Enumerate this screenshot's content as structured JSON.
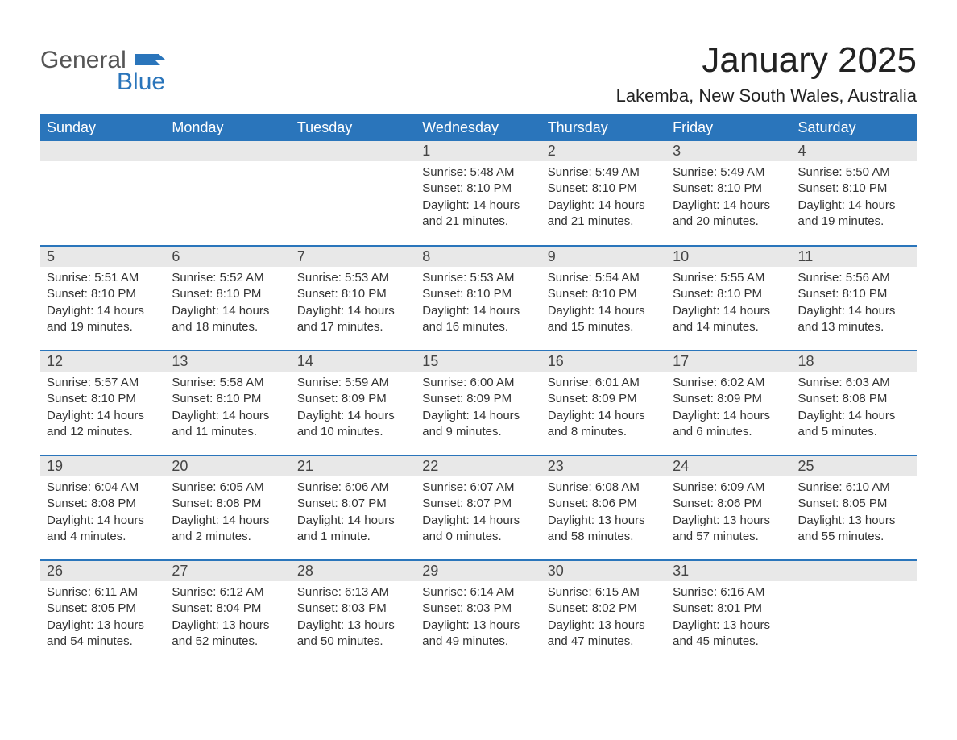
{
  "logo": {
    "word1": "General",
    "word2": "Blue",
    "brand_color": "#2a75bb"
  },
  "header": {
    "title": "January 2025",
    "location": "Lakemba, New South Wales, Australia"
  },
  "calendar": {
    "header_bg": "#2a75bb",
    "header_fg": "#ffffff",
    "daynum_bg": "#e8e8e8",
    "rule_color": "#2a75bb",
    "weekdays": [
      "Sunday",
      "Monday",
      "Tuesday",
      "Wednesday",
      "Thursday",
      "Friday",
      "Saturday"
    ],
    "weeks": [
      [
        null,
        null,
        null,
        {
          "n": "1",
          "sunrise": "Sunrise: 5:48 AM",
          "sunset": "Sunset: 8:10 PM",
          "daylight": "Daylight: 14 hours and 21 minutes."
        },
        {
          "n": "2",
          "sunrise": "Sunrise: 5:49 AM",
          "sunset": "Sunset: 8:10 PM",
          "daylight": "Daylight: 14 hours and 21 minutes."
        },
        {
          "n": "3",
          "sunrise": "Sunrise: 5:49 AM",
          "sunset": "Sunset: 8:10 PM",
          "daylight": "Daylight: 14 hours and 20 minutes."
        },
        {
          "n": "4",
          "sunrise": "Sunrise: 5:50 AM",
          "sunset": "Sunset: 8:10 PM",
          "daylight": "Daylight: 14 hours and 19 minutes."
        }
      ],
      [
        {
          "n": "5",
          "sunrise": "Sunrise: 5:51 AM",
          "sunset": "Sunset: 8:10 PM",
          "daylight": "Daylight: 14 hours and 19 minutes."
        },
        {
          "n": "6",
          "sunrise": "Sunrise: 5:52 AM",
          "sunset": "Sunset: 8:10 PM",
          "daylight": "Daylight: 14 hours and 18 minutes."
        },
        {
          "n": "7",
          "sunrise": "Sunrise: 5:53 AM",
          "sunset": "Sunset: 8:10 PM",
          "daylight": "Daylight: 14 hours and 17 minutes."
        },
        {
          "n": "8",
          "sunrise": "Sunrise: 5:53 AM",
          "sunset": "Sunset: 8:10 PM",
          "daylight": "Daylight: 14 hours and 16 minutes."
        },
        {
          "n": "9",
          "sunrise": "Sunrise: 5:54 AM",
          "sunset": "Sunset: 8:10 PM",
          "daylight": "Daylight: 14 hours and 15 minutes."
        },
        {
          "n": "10",
          "sunrise": "Sunrise: 5:55 AM",
          "sunset": "Sunset: 8:10 PM",
          "daylight": "Daylight: 14 hours and 14 minutes."
        },
        {
          "n": "11",
          "sunrise": "Sunrise: 5:56 AM",
          "sunset": "Sunset: 8:10 PM",
          "daylight": "Daylight: 14 hours and 13 minutes."
        }
      ],
      [
        {
          "n": "12",
          "sunrise": "Sunrise: 5:57 AM",
          "sunset": "Sunset: 8:10 PM",
          "daylight": "Daylight: 14 hours and 12 minutes."
        },
        {
          "n": "13",
          "sunrise": "Sunrise: 5:58 AM",
          "sunset": "Sunset: 8:10 PM",
          "daylight": "Daylight: 14 hours and 11 minutes."
        },
        {
          "n": "14",
          "sunrise": "Sunrise: 5:59 AM",
          "sunset": "Sunset: 8:09 PM",
          "daylight": "Daylight: 14 hours and 10 minutes."
        },
        {
          "n": "15",
          "sunrise": "Sunrise: 6:00 AM",
          "sunset": "Sunset: 8:09 PM",
          "daylight": "Daylight: 14 hours and 9 minutes."
        },
        {
          "n": "16",
          "sunrise": "Sunrise: 6:01 AM",
          "sunset": "Sunset: 8:09 PM",
          "daylight": "Daylight: 14 hours and 8 minutes."
        },
        {
          "n": "17",
          "sunrise": "Sunrise: 6:02 AM",
          "sunset": "Sunset: 8:09 PM",
          "daylight": "Daylight: 14 hours and 6 minutes."
        },
        {
          "n": "18",
          "sunrise": "Sunrise: 6:03 AM",
          "sunset": "Sunset: 8:08 PM",
          "daylight": "Daylight: 14 hours and 5 minutes."
        }
      ],
      [
        {
          "n": "19",
          "sunrise": "Sunrise: 6:04 AM",
          "sunset": "Sunset: 8:08 PM",
          "daylight": "Daylight: 14 hours and 4 minutes."
        },
        {
          "n": "20",
          "sunrise": "Sunrise: 6:05 AM",
          "sunset": "Sunset: 8:08 PM",
          "daylight": "Daylight: 14 hours and 2 minutes."
        },
        {
          "n": "21",
          "sunrise": "Sunrise: 6:06 AM",
          "sunset": "Sunset: 8:07 PM",
          "daylight": "Daylight: 14 hours and 1 minute."
        },
        {
          "n": "22",
          "sunrise": "Sunrise: 6:07 AM",
          "sunset": "Sunset: 8:07 PM",
          "daylight": "Daylight: 14 hours and 0 minutes."
        },
        {
          "n": "23",
          "sunrise": "Sunrise: 6:08 AM",
          "sunset": "Sunset: 8:06 PM",
          "daylight": "Daylight: 13 hours and 58 minutes."
        },
        {
          "n": "24",
          "sunrise": "Sunrise: 6:09 AM",
          "sunset": "Sunset: 8:06 PM",
          "daylight": "Daylight: 13 hours and 57 minutes."
        },
        {
          "n": "25",
          "sunrise": "Sunrise: 6:10 AM",
          "sunset": "Sunset: 8:05 PM",
          "daylight": "Daylight: 13 hours and 55 minutes."
        }
      ],
      [
        {
          "n": "26",
          "sunrise": "Sunrise: 6:11 AM",
          "sunset": "Sunset: 8:05 PM",
          "daylight": "Daylight: 13 hours and 54 minutes."
        },
        {
          "n": "27",
          "sunrise": "Sunrise: 6:12 AM",
          "sunset": "Sunset: 8:04 PM",
          "daylight": "Daylight: 13 hours and 52 minutes."
        },
        {
          "n": "28",
          "sunrise": "Sunrise: 6:13 AM",
          "sunset": "Sunset: 8:03 PM",
          "daylight": "Daylight: 13 hours and 50 minutes."
        },
        {
          "n": "29",
          "sunrise": "Sunrise: 6:14 AM",
          "sunset": "Sunset: 8:03 PM",
          "daylight": "Daylight: 13 hours and 49 minutes."
        },
        {
          "n": "30",
          "sunrise": "Sunrise: 6:15 AM",
          "sunset": "Sunset: 8:02 PM",
          "daylight": "Daylight: 13 hours and 47 minutes."
        },
        {
          "n": "31",
          "sunrise": "Sunrise: 6:16 AM",
          "sunset": "Sunset: 8:01 PM",
          "daylight": "Daylight: 13 hours and 45 minutes."
        },
        null
      ]
    ]
  }
}
